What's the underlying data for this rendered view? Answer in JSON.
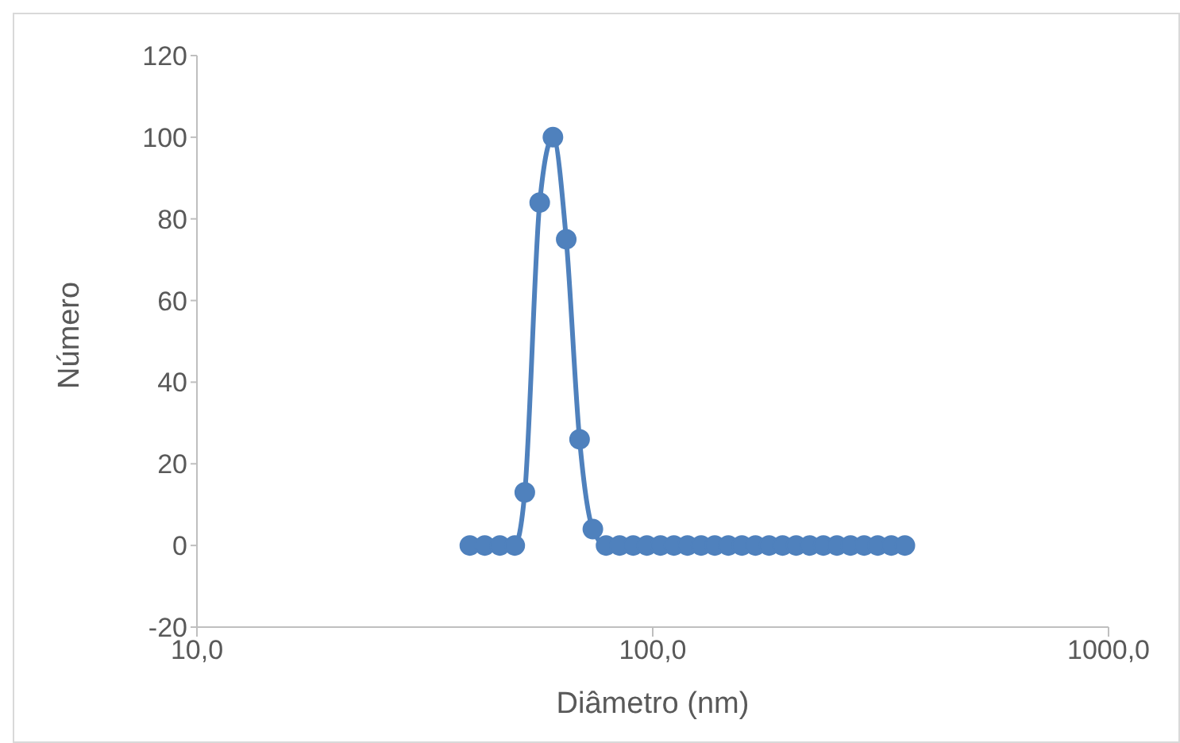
{
  "chart_data": {
    "type": "line",
    "xlabel": "Diâmetro (nm)",
    "ylabel": "Número",
    "log": "x",
    "xlim": [
      10,
      1000
    ],
    "xticks": [
      {
        "value": 10,
        "label": "10,0"
      },
      {
        "value": 100,
        "label": "100,0"
      },
      {
        "value": 1000,
        "label": "1000,0"
      }
    ],
    "ylim": [
      -20,
      120
    ],
    "yticks": [
      -20,
      0,
      20,
      40,
      60,
      80,
      100,
      120
    ],
    "grid": false,
    "legend": false,
    "marker": "circle",
    "line_style": "solid",
    "x": [
      39.7,
      42.8,
      46.2,
      49.8,
      52.4,
      56.5,
      60.4,
      64.6,
      69.1,
      73.9,
      79.0,
      84.6,
      90.6,
      97.1,
      104,
      111.3,
      119.2,
      127.7,
      136.8,
      146.5,
      156.9,
      168.0,
      180,
      192.7,
      206.4,
      221,
      236.8,
      253.6,
      271.6,
      290.9,
      311.6,
      333.7,
      357.4
    ],
    "series": [
      {
        "color": "#4f81bd",
        "values": [
          0,
          0,
          0,
          0,
          13,
          84,
          100,
          75,
          26,
          4,
          0,
          0,
          0,
          0,
          0,
          0,
          0,
          0,
          0,
          0,
          0,
          0,
          0,
          0,
          0,
          0,
          0,
          0,
          0,
          0,
          0,
          0,
          0
        ]
      }
    ]
  }
}
